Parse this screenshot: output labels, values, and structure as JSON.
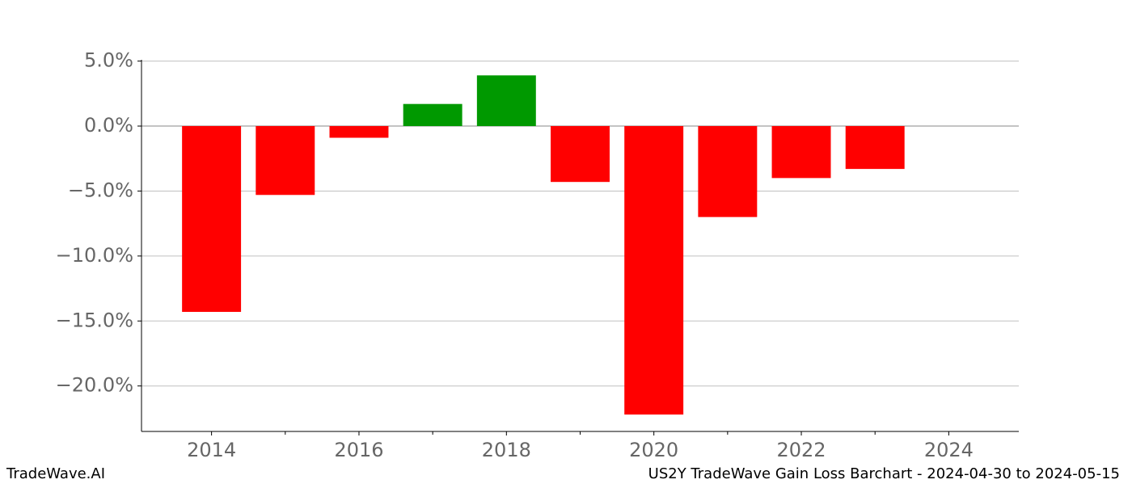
{
  "chart_data": {
    "type": "bar",
    "title": "US2Y TradeWave Gain Loss Barchart - 2024-04-30 to 2024-05-15",
    "brand": "TradeWave.AI",
    "x": [
      2014,
      2015,
      2016,
      2017,
      2018,
      2019,
      2020,
      2021,
      2022,
      2023
    ],
    "values": [
      -14.3,
      -5.3,
      -0.9,
      1.7,
      3.9,
      -4.3,
      -22.2,
      -7.0,
      -4.0,
      -3.3
    ],
    "positive_color": "#009900",
    "negative_color": "#ff0000",
    "xlim": [
      2013.05,
      2024.95
    ],
    "xticks": [
      2014,
      2016,
      2018,
      2020,
      2022,
      2024
    ],
    "xminorticks": [
      2015,
      2017,
      2019,
      2021,
      2023
    ],
    "ylim": [
      -23.5,
      5.1
    ],
    "yticks": [
      {
        "value": 5,
        "label": "5.0%"
      },
      {
        "value": 0,
        "label": "0.0%"
      },
      {
        "value": -5,
        "label": "−5.0%"
      },
      {
        "value": -10,
        "label": "−10.0%"
      },
      {
        "value": -15,
        "label": "−15.0%"
      },
      {
        "value": -20,
        "label": "−20.0%"
      }
    ],
    "grid": true
  }
}
